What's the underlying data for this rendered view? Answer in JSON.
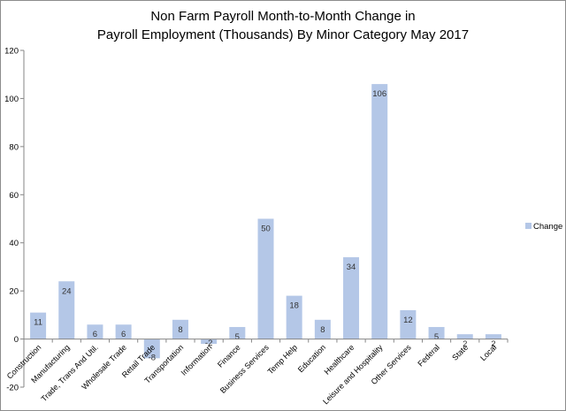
{
  "chart_data": {
    "type": "bar",
    "title_lines": [
      "Non Farm Payroll Month-to-Month Change in",
      "Payroll Employment (Thousands) By Minor Category May 2017"
    ],
    "categories": [
      "Construction",
      "Manufacturing",
      "Trade, Trans And Util.",
      "Wholesale Trade",
      "Retail Trade",
      "Transportation",
      "Information",
      "Finance",
      "Business Services",
      "Temp Help",
      "Education",
      "Healthcare",
      "Leisure and Hospitality",
      "Other Services",
      "Federal",
      "State",
      "Local"
    ],
    "series": [
      {
        "name": "Change",
        "values": [
          11,
          24,
          6,
          6,
          -8,
          8,
          -2,
          5,
          50,
          18,
          8,
          34,
          106,
          12,
          5,
          2,
          2
        ],
        "data_labels": [
          "11",
          "24",
          "6",
          "6",
          "-8",
          "8",
          "-2",
          "5",
          "50",
          "18",
          "8",
          "34",
          "106",
          "12",
          "5",
          "2",
          "2"
        ]
      }
    ],
    "ylim": [
      -20,
      120
    ],
    "yticks": [
      -20,
      0,
      20,
      40,
      60,
      80,
      100,
      120
    ],
    "grid": false,
    "legend": "right",
    "bar_color": "#b4c7e7"
  }
}
